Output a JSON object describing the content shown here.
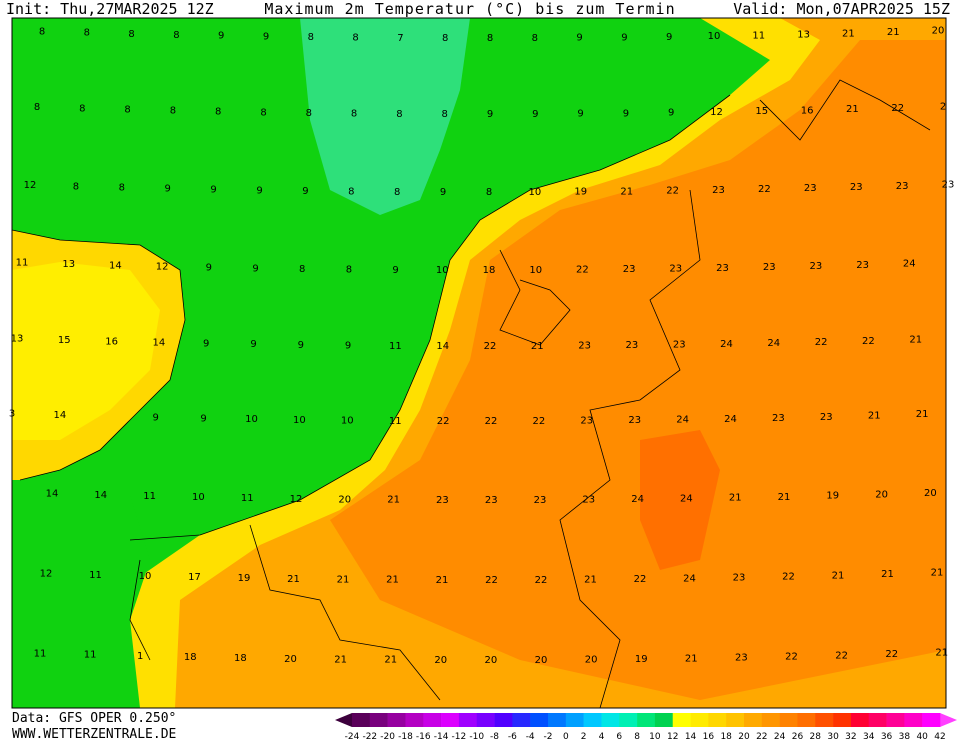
{
  "header": {
    "init": "Init: Thu,27MAR2025 12Z",
    "title": "Maximum 2m Temperatur (°C) bis zum Termin",
    "valid": "Valid: Mon,07APR2025 15Z"
  },
  "labels": [
    [
      8,
      8,
      8,
      8,
      9,
      9,
      8,
      8,
      7,
      8,
      8,
      8,
      9,
      9,
      9,
      10,
      11,
      13,
      21,
      21,
      20
    ],
    [
      8,
      8,
      8,
      8,
      8,
      8,
      8,
      8,
      8,
      8,
      9,
      9,
      9,
      9,
      9,
      12,
      15,
      16,
      21,
      22,
      2
    ],
    [
      12,
      8,
      8,
      9,
      9,
      9,
      9,
      8,
      8,
      9,
      8,
      10,
      19,
      21,
      22,
      23,
      22,
      23,
      23,
      23,
      23
    ],
    [
      11,
      13,
      14,
      12,
      9,
      9,
      8,
      8,
      9,
      10,
      18,
      10,
      22,
      23,
      23,
      23,
      23,
      23,
      23,
      24
    ],
    [
      13,
      15,
      16,
      14,
      9,
      9,
      9,
      9,
      11,
      14,
      22,
      21,
      23,
      23,
      23,
      24,
      24,
      22,
      22,
      21
    ],
    [
      3,
      14,
      null,
      9,
      9,
      10,
      10,
      10,
      11,
      22,
      22,
      22,
      23,
      23,
      24,
      24,
      23,
      23,
      21,
      21
    ],
    [
      14,
      14,
      11,
      10,
      11,
      12,
      20,
      21,
      23,
      23,
      23,
      23,
      24,
      24,
      21,
      21,
      19,
      20,
      20
    ],
    [
      12,
      11,
      10,
      17,
      19,
      21,
      21,
      21,
      21,
      22,
      22,
      21,
      22,
      24,
      23,
      22,
      21,
      21,
      21
    ],
    [
      11,
      11,
      1,
      18,
      18,
      20,
      21,
      21,
      20,
      20,
      20,
      20,
      19,
      21,
      23,
      22,
      22,
      22,
      21
    ]
  ],
  "legend": {
    "ticks": [
      -24,
      -22,
      -20,
      -18,
      -16,
      -14,
      -12,
      -10,
      -8,
      -6,
      -4,
      -2,
      0,
      2,
      4,
      6,
      8,
      10,
      12,
      14,
      16,
      18,
      20,
      22,
      24,
      26,
      28,
      30,
      32,
      34,
      36,
      38,
      40,
      42
    ],
    "colors": [
      "#5a005a",
      "#78007d",
      "#9600a0",
      "#b400c3",
      "#c800e6",
      "#dc00ff",
      "#a000ff",
      "#7800ff",
      "#5000ff",
      "#2828ff",
      "#0050ff",
      "#0078ff",
      "#00a0ff",
      "#00c8ff",
      "#00e6e6",
      "#00f0b4",
      "#00e678",
      "#00d250",
      "#ffff00",
      "#ffeb00",
      "#ffd700",
      "#ffc300",
      "#ffaa00",
      "#ff9600",
      "#ff8200",
      "#ff6e00",
      "#ff5000",
      "#ff3200",
      "#ff0032",
      "#ff0064",
      "#ff0096",
      "#ff00c8",
      "#ff00ff"
    ]
  },
  "footer": {
    "data": "Data: GFS OPER 0.250°",
    "site": "WWW.WETTERZENTRALE.DE"
  }
}
